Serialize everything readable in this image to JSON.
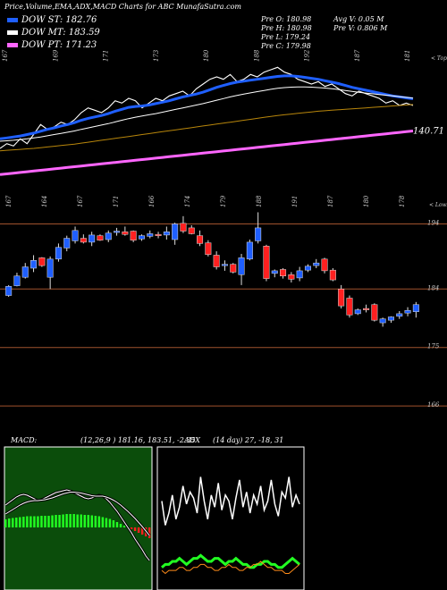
{
  "title": "Price,Volume,EMA,ADX,MACD Charts for ABC MunafaSutra.com",
  "dow_legend": [
    {
      "label": "DOW ST:",
      "value": "182.76",
      "color": "#1f5fff"
    },
    {
      "label": "DOW MT:",
      "value": "183.59",
      "color": "#ffffff"
    },
    {
      "label": "DOW PT:",
      "value": "171.23",
      "color": "#ff66ff"
    }
  ],
  "stats_left": [
    "Pre   O: 180.98",
    "Pre   H: 180.98",
    "Pre   L: 179.24",
    "Pre   C: 179.98"
  ],
  "stats_right": [
    "Avg V: 0.05  M",
    "Pre   V: 0.806  M"
  ],
  "colors": {
    "up": "#1f5fff",
    "down": "#ff2020",
    "macd_hist": "#22ff22",
    "adx_green": "#22ff22",
    "adx_orange": "#ff8c1a"
  },
  "chart_data": [
    {
      "type": "line",
      "name": "ema-panel",
      "top_label": "< Tops",
      "top_ticks": [
        "167",
        "169",
        "171",
        "173",
        "180",
        "188",
        "192",
        "187",
        "181"
      ],
      "bottom_ticks": [
        "167",
        "164",
        "167",
        "171",
        "166",
        "174",
        "179",
        "188",
        "191",
        "187",
        "180",
        "178"
      ],
      "price_label": "140.71",
      "series": [
        {
          "name": "Close",
          "values": [
            161,
            163,
            162,
            165,
            163,
            167,
            171,
            169,
            170,
            172,
            171,
            173,
            176,
            178,
            177,
            176,
            178,
            181,
            180,
            182,
            181,
            178,
            180,
            182,
            181,
            183,
            184,
            185,
            183,
            186,
            188,
            190,
            191,
            190,
            192,
            189,
            190,
            192,
            191,
            193,
            194,
            195,
            193,
            192,
            190,
            189,
            188,
            189,
            187,
            188,
            186,
            184,
            183,
            185,
            184,
            183,
            182,
            180,
            181,
            179,
            180,
            179
          ]
        },
        {
          "name": "EMA short",
          "values": [
            165,
            165.4,
            165.8,
            166.2,
            166.8,
            167.4,
            168.2,
            169,
            169.6,
            170.4,
            171,
            171.8,
            172.8,
            173.6,
            174.2,
            174.8,
            175.6,
            176.6,
            177.4,
            178.2,
            178.6,
            178.8,
            179.2,
            179.8,
            180.4,
            181,
            181.8,
            182.6,
            183.2,
            183.8,
            184.6,
            185.6,
            186.6,
            187.4,
            188.2,
            188.8,
            189.2,
            189.6,
            190,
            190.4,
            190.8,
            191.2,
            191.4,
            191.4,
            191.2,
            190.8,
            190.4,
            190,
            189.4,
            188.8,
            188.2,
            187.4,
            186.6,
            186,
            185.4,
            184.8,
            184.2,
            183.6,
            183,
            182.6,
            182.2,
            181.8
          ]
        },
        {
          "name": "EMA mid",
          "values": [
            164,
            164.2,
            164.4,
            164.7,
            165,
            165.4,
            165.8,
            166.3,
            166.8,
            167.3,
            167.8,
            168.3,
            169,
            169.6,
            170.2,
            170.8,
            171.4,
            172.1,
            172.8,
            173.5,
            174.1,
            174.6,
            175.1,
            175.6,
            176.2,
            176.8,
            177.4,
            178,
            178.6,
            179.2,
            179.8,
            180.5,
            181.2,
            181.9,
            182.6,
            183.2,
            183.8,
            184.3,
            184.8,
            185.3,
            185.8,
            186.2,
            186.5,
            186.7,
            186.8,
            186.8,
            186.7,
            186.5,
            186.3,
            186,
            185.7,
            185.3,
            184.9,
            184.5,
            184.2,
            183.9,
            183.6,
            183.3,
            183,
            182.7,
            182.4,
            182.1
          ]
        },
        {
          "name": "EMA long",
          "values": [
            160,
            160.2,
            160.4,
            160.6,
            160.8,
            161,
            161.3,
            161.6,
            161.9,
            162.2,
            162.5,
            162.8,
            163.2,
            163.6,
            164,
            164.4,
            164.8,
            165.2,
            165.6,
            166,
            166.4,
            166.8,
            167.2,
            167.6,
            168,
            168.4,
            168.8,
            169.2,
            169.6,
            170,
            170.4,
            170.8,
            171.2,
            171.6,
            172,
            172.4,
            172.8,
            173.2,
            173.6,
            174,
            174.4,
            174.8,
            175.1,
            175.4,
            175.7,
            176,
            176.3,
            176.6,
            176.8,
            177,
            177.2,
            177.4,
            177.6,
            177.8,
            178,
            178.2,
            178.4,
            178.6,
            178.8,
            179,
            179.2,
            179.4
          ]
        },
        {
          "name": "EMA 200",
          "values": [
            150,
            150.3,
            150.6,
            150.9,
            151.2,
            151.5,
            151.8,
            152.1,
            152.4,
            152.7,
            153,
            153.3,
            153.6,
            153.9,
            154.2,
            154.5,
            154.8,
            155.1,
            155.4,
            155.7,
            156,
            156.3,
            156.6,
            156.9,
            157.2,
            157.5,
            157.8,
            158.1,
            158.4,
            158.7,
            159,
            159.3,
            159.6,
            159.9,
            160.2,
            160.5,
            160.8,
            161.1,
            161.4,
            161.7,
            162,
            162.3,
            162.6,
            162.9,
            163.2,
            163.5,
            163.8,
            164.1,
            164.4,
            164.7,
            165,
            165.3,
            165.6,
            165.9,
            166.2,
            166.5,
            166.8,
            167.1,
            167.4,
            167.7,
            168,
            168.3
          ]
        }
      ],
      "ylim": [
        140,
        200
      ]
    },
    {
      "type": "candlestick",
      "name": "price-panel",
      "top_label": "< Lows",
      "y_ticks": [
        194,
        184,
        175,
        166
      ],
      "ylim": [
        163,
        196
      ],
      "candles": [
        {
          "o": 183.0,
          "h": 184.6,
          "l": 182.8,
          "c": 184.4
        },
        {
          "o": 184.5,
          "h": 186.5,
          "l": 184.4,
          "c": 186.0
        },
        {
          "o": 185.8,
          "h": 188.0,
          "l": 185.6,
          "c": 187.4
        },
        {
          "o": 187.2,
          "h": 189.2,
          "l": 186.6,
          "c": 188.4
        },
        {
          "o": 188.8,
          "h": 188.9,
          "l": 187.4,
          "c": 187.6
        },
        {
          "o": 185.8,
          "h": 189.0,
          "l": 184.0,
          "c": 188.6
        },
        {
          "o": 188.6,
          "h": 191.0,
          "l": 188.2,
          "c": 190.4
        },
        {
          "o": 190.3,
          "h": 192.2,
          "l": 189.8,
          "c": 191.8
        },
        {
          "o": 191.4,
          "h": 193.6,
          "l": 191.0,
          "c": 193.0
        },
        {
          "o": 191.8,
          "h": 192.4,
          "l": 191.0,
          "c": 191.2
        },
        {
          "o": 191.2,
          "h": 192.8,
          "l": 190.6,
          "c": 192.3
        },
        {
          "o": 192.2,
          "h": 192.4,
          "l": 191.4,
          "c": 191.5
        },
        {
          "o": 191.6,
          "h": 193.0,
          "l": 191.2,
          "c": 192.6
        },
        {
          "o": 192.7,
          "h": 193.4,
          "l": 192.2,
          "c": 192.9
        },
        {
          "o": 192.8,
          "h": 193.6,
          "l": 192.2,
          "c": 192.4
        },
        {
          "o": 192.9,
          "h": 193.0,
          "l": 191.2,
          "c": 191.5
        },
        {
          "o": 191.7,
          "h": 192.4,
          "l": 191.4,
          "c": 192.2
        },
        {
          "o": 192.1,
          "h": 193.0,
          "l": 191.8,
          "c": 192.5
        },
        {
          "o": 192.4,
          "h": 192.8,
          "l": 191.8,
          "c": 192.2
        },
        {
          "o": 192.3,
          "h": 193.6,
          "l": 191.6,
          "c": 192.8
        },
        {
          "o": 191.6,
          "h": 194.2,
          "l": 190.8,
          "c": 194.0
        },
        {
          "o": 194.1,
          "h": 195.2,
          "l": 192.6,
          "c": 192.9
        },
        {
          "o": 193.4,
          "h": 193.8,
          "l": 192.4,
          "c": 192.5
        },
        {
          "o": 192.2,
          "h": 193.0,
          "l": 190.6,
          "c": 191.0
        },
        {
          "o": 191.1,
          "h": 191.5,
          "l": 189.0,
          "c": 189.3
        },
        {
          "o": 189.2,
          "h": 189.8,
          "l": 187.0,
          "c": 187.4
        },
        {
          "o": 187.6,
          "h": 188.4,
          "l": 186.8,
          "c": 187.8
        },
        {
          "o": 187.8,
          "h": 188.0,
          "l": 186.4,
          "c": 186.6
        },
        {
          "o": 186.2,
          "h": 189.4,
          "l": 184.6,
          "c": 188.8
        },
        {
          "o": 188.6,
          "h": 191.6,
          "l": 188.4,
          "c": 191.2
        },
        {
          "o": 191.4,
          "h": 195.8,
          "l": 191.0,
          "c": 193.4
        },
        {
          "o": 190.6,
          "h": 190.8,
          "l": 185.2,
          "c": 185.6
        },
        {
          "o": 186.4,
          "h": 187.0,
          "l": 185.8,
          "c": 186.8
        },
        {
          "o": 187.0,
          "h": 187.2,
          "l": 185.6,
          "c": 186.0
        },
        {
          "o": 186.2,
          "h": 186.6,
          "l": 185.0,
          "c": 185.5
        },
        {
          "o": 185.7,
          "h": 187.4,
          "l": 185.2,
          "c": 186.8
        },
        {
          "o": 186.9,
          "h": 187.8,
          "l": 186.6,
          "c": 187.5
        },
        {
          "o": 187.6,
          "h": 188.6,
          "l": 187.2,
          "c": 188.0
        },
        {
          "o": 188.6,
          "h": 188.8,
          "l": 186.4,
          "c": 186.8
        },
        {
          "o": 186.9,
          "h": 187.2,
          "l": 185.2,
          "c": 185.4
        },
        {
          "o": 184.0,
          "h": 184.6,
          "l": 181.0,
          "c": 181.4
        },
        {
          "o": 182.6,
          "h": 183.0,
          "l": 179.6,
          "c": 180.0
        },
        {
          "o": 180.2,
          "h": 181.0,
          "l": 180.0,
          "c": 180.8
        },
        {
          "o": 181.0,
          "h": 181.6,
          "l": 180.4,
          "c": 180.8
        },
        {
          "o": 181.6,
          "h": 181.8,
          "l": 179.0,
          "c": 179.2
        },
        {
          "o": 178.8,
          "h": 179.6,
          "l": 178.2,
          "c": 179.4
        },
        {
          "o": 179.2,
          "h": 179.8,
          "l": 178.8,
          "c": 179.7
        },
        {
          "o": 179.8,
          "h": 180.6,
          "l": 179.4,
          "c": 180.2
        },
        {
          "o": 180.3,
          "h": 181.2,
          "l": 179.8,
          "c": 180.7
        },
        {
          "o": 180.5,
          "h": 182.0,
          "l": 179.6,
          "c": 181.6
        }
      ]
    },
    {
      "type": "bar",
      "name": "macd-panel",
      "label": "MACD:",
      "params": "(12,26,9 ) 181.16,  183.51, -2.35",
      "histogram": [
        1.8,
        2.0,
        2.1,
        2.2,
        2.3,
        2.4,
        2.5,
        2.5,
        2.5,
        2.5,
        2.6,
        2.6,
        2.6,
        2.7,
        2.8,
        2.8,
        2.9,
        3.0,
        3.0,
        3.0,
        2.9,
        2.9,
        2.8,
        2.8,
        2.7,
        2.6,
        2.5,
        2.3,
        2.1,
        1.9,
        1.6,
        1.2,
        0.8,
        0.4,
        0.0,
        -0.4,
        -0.8,
        -1.2,
        -1.6,
        -2.0,
        -2.4
      ],
      "macd": [
        5.0,
        5.6,
        6.2,
        6.8,
        7.2,
        7.4,
        7.2,
        6.8,
        6.4,
        6.0,
        6.2,
        6.6,
        7.0,
        7.4,
        7.8,
        8.0,
        8.2,
        8.4,
        8.2,
        7.8,
        7.4,
        7.0,
        6.6,
        6.4,
        6.6,
        7.0,
        7.2,
        7.0,
        6.4,
        5.6,
        4.6,
        3.6,
        2.4,
        1.2,
        0.0,
        -1.2,
        -2.6,
        -3.8,
        -5.0,
        -6.4,
        -7.4
      ],
      "signal": [
        3.0,
        3.5,
        4.0,
        4.5,
        5.0,
        5.4,
        5.7,
        5.9,
        6.0,
        6.0,
        6.1,
        6.2,
        6.4,
        6.6,
        6.9,
        7.2,
        7.5,
        7.7,
        7.9,
        7.9,
        7.8,
        7.7,
        7.5,
        7.3,
        7.1,
        7.0,
        7.0,
        7.0,
        6.8,
        6.5,
        6.1,
        5.6,
        5.0,
        4.3,
        3.6,
        2.8,
        2.0,
        1.1,
        0.2,
        -0.8,
        -1.8
      ],
      "ylim": [
        -12,
        12
      ]
    },
    {
      "type": "line",
      "name": "adx-panel",
      "label": "ADX",
      "params": "(14  day) 27, -18, 31",
      "series": [
        {
          "name": "DI",
          "values": [
            28,
            20,
            24,
            30,
            22,
            26,
            33,
            27,
            31,
            29,
            24,
            36,
            28,
            22,
            30,
            26,
            34,
            25,
            30,
            28,
            22,
            29,
            35,
            26,
            31,
            24,
            30,
            27,
            33,
            25,
            28,
            35,
            27,
            23,
            31,
            29,
            36,
            26,
            30,
            27
          ]
        },
        {
          "name": "Green",
          "values": [
            6,
            7,
            7,
            8,
            8,
            9,
            8,
            7,
            8,
            9,
            9,
            10,
            9,
            8,
            8,
            9,
            9,
            8,
            7,
            8,
            8,
            9,
            8,
            7,
            7,
            6,
            6,
            7,
            7,
            8,
            8,
            7,
            7,
            6,
            6,
            7,
            8,
            9,
            8,
            7
          ]
        },
        {
          "name": "Orange",
          "values": [
            5,
            4,
            5,
            5,
            5,
            6,
            6,
            5,
            5,
            6,
            6,
            7,
            7,
            6,
            6,
            5,
            5,
            6,
            6,
            7,
            6,
            6,
            5,
            5,
            6,
            6,
            7,
            7,
            8,
            7,
            6,
            6,
            5,
            5,
            5,
            4,
            4,
            5,
            6,
            7
          ]
        }
      ],
      "ylim": [
        0,
        40
      ]
    }
  ]
}
